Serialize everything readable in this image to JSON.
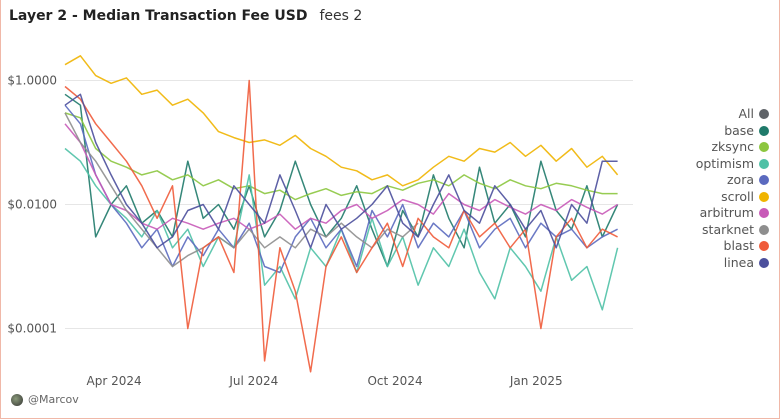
{
  "header": {
    "title": "Layer 2 - Median Transaction Fee USD",
    "subtitle": "fees 2"
  },
  "author": "@Marcov",
  "chart_data": {
    "type": "line",
    "title": "Layer 2 - Median Transaction Fee USD",
    "xlabel": "",
    "ylabel": "",
    "yscale": "log",
    "ylim": [
      4.5e-05,
      4.5
    ],
    "x_start": "2024-02-29",
    "x_step_days": 10,
    "xlim": [
      "2024-02-29",
      "2025-03-05"
    ],
    "x_ticks": [
      {
        "date": "2024-04-01",
        "label": "Apr 2024"
      },
      {
        "date": "2024-07-01",
        "label": "Jul 2024"
      },
      {
        "date": "2024-10-01",
        "label": "Oct 2024"
      },
      {
        "date": "2025-01-01",
        "label": "Jan 2025"
      }
    ],
    "y_ticks": [
      {
        "value": 1,
        "label": "$1.0000"
      },
      {
        "value": 0.01,
        "label": "$0.0100"
      },
      {
        "value": 0.0001,
        "label": "$0.0001"
      }
    ],
    "grid": true,
    "legend_position": "right",
    "series": [
      {
        "name": "All",
        "color": "#5f6368",
        "values": []
      },
      {
        "name": "base",
        "color": "#1f7a6a",
        "values": [
          0.6,
          0.4,
          0.003,
          0.01,
          0.02,
          0.005,
          0.008,
          0.003,
          0.05,
          0.006,
          0.01,
          0.004,
          0.02,
          0.003,
          0.008,
          0.05,
          0.01,
          0.003,
          0.006,
          0.02,
          0.004,
          0.001,
          0.008,
          0.003,
          0.03,
          0.006,
          0.002,
          0.04,
          0.005,
          0.01,
          0.003,
          0.05,
          0.008,
          0.004,
          0.02,
          0.003,
          0.01
        ]
      },
      {
        "name": "zksync",
        "color": "#8cc63f",
        "values": [
          0.3,
          0.25,
          0.08,
          0.05,
          0.04,
          0.03,
          0.035,
          0.025,
          0.03,
          0.02,
          0.025,
          0.018,
          0.02,
          0.015,
          0.017,
          0.012,
          0.015,
          0.018,
          0.014,
          0.016,
          0.015,
          0.02,
          0.017,
          0.022,
          0.025,
          0.02,
          0.03,
          0.022,
          0.018,
          0.025,
          0.02,
          0.018,
          0.022,
          0.02,
          0.017,
          0.015,
          0.015
        ]
      },
      {
        "name": "optimism",
        "color": "#4fc1a6",
        "values": [
          0.08,
          0.05,
          0.02,
          0.01,
          0.006,
          0.003,
          0.008,
          0.002,
          0.004,
          0.001,
          0.003,
          0.002,
          0.03,
          0.0005,
          0.001,
          0.0003,
          0.002,
          0.001,
          0.004,
          0.0008,
          0.006,
          0.001,
          0.003,
          0.0005,
          0.002,
          0.001,
          0.004,
          0.0008,
          0.0003,
          0.002,
          0.001,
          0.0004,
          0.003,
          0.0006,
          0.001,
          0.0002,
          0.002
        ]
      },
      {
        "name": "zora",
        "color": "#5b6abf",
        "values": [
          0.4,
          0.2,
          0.03,
          0.01,
          0.005,
          0.002,
          0.004,
          0.001,
          0.003,
          0.0015,
          0.004,
          0.002,
          0.005,
          0.001,
          0.0008,
          0.003,
          0.006,
          0.002,
          0.004,
          0.001,
          0.008,
          0.003,
          0.01,
          0.002,
          0.005,
          0.003,
          0.008,
          0.002,
          0.004,
          0.006,
          0.002,
          0.005,
          0.003,
          0.004,
          0.002,
          0.003,
          0.004
        ]
      },
      {
        "name": "scroll",
        "color": "#f0b400",
        "values": [
          1.8,
          2.5,
          1.2,
          0.9,
          1.1,
          0.6,
          0.7,
          0.4,
          0.5,
          0.3,
          0.15,
          0.12,
          0.1,
          0.11,
          0.09,
          0.13,
          0.08,
          0.06,
          0.04,
          0.035,
          0.025,
          0.03,
          0.02,
          0.025,
          0.04,
          0.06,
          0.05,
          0.08,
          0.07,
          0.1,
          0.06,
          0.09,
          0.05,
          0.08,
          0.04,
          0.06,
          0.03
        ]
      },
      {
        "name": "arbitrum",
        "color": "#c85ab8",
        "values": [
          0.2,
          0.1,
          0.03,
          0.01,
          0.008,
          0.005,
          0.004,
          0.006,
          0.005,
          0.004,
          0.005,
          0.006,
          0.004,
          0.005,
          0.007,
          0.004,
          0.006,
          0.005,
          0.008,
          0.01,
          0.006,
          0.008,
          0.012,
          0.01,
          0.007,
          0.015,
          0.01,
          0.008,
          0.012,
          0.009,
          0.007,
          0.01,
          0.008,
          0.012,
          0.009,
          0.007,
          0.01
        ]
      },
      {
        "name": "starknet",
        "color": "#8e8e8e",
        "values": [
          0.3,
          0.1,
          0.05,
          0.02,
          0.008,
          0.004,
          0.002,
          0.001,
          0.0015,
          0.002,
          0.003,
          0.002,
          0.004,
          0.002,
          0.003,
          0.002,
          0.004,
          0.003,
          0.005,
          0.003,
          0.002,
          0.004,
          0.003,
          0.005
        ]
      },
      {
        "name": "blast",
        "color": "#ef5b3a",
        "values": [
          0.8,
          0.5,
          0.2,
          0.1,
          0.05,
          0.02,
          0.006,
          0.02,
          0.0001,
          0.002,
          0.003,
          0.0008,
          1.0,
          3e-05,
          0.002,
          0.0004,
          2e-05,
          0.001,
          0.003,
          0.0008,
          0.002,
          0.005,
          0.001,
          0.006,
          0.003,
          0.002,
          0.008,
          0.003,
          0.005,
          0.002,
          0.004,
          0.0001,
          0.003,
          0.006,
          0.002,
          0.004,
          0.003
        ]
      },
      {
        "name": "linea",
        "color": "#4b4f9c",
        "values": [
          0.4,
          0.6,
          0.1,
          0.03,
          0.01,
          0.005,
          0.002,
          0.003,
          0.008,
          0.01,
          0.004,
          0.02,
          0.01,
          0.005,
          0.03,
          0.008,
          0.002,
          0.01,
          0.004,
          0.006,
          0.01,
          0.02,
          0.005,
          0.003,
          0.01,
          0.03,
          0.008,
          0.005,
          0.02,
          0.01,
          0.004,
          0.008,
          0.002,
          0.01,
          0.005,
          0.05,
          0.05
        ]
      }
    ]
  }
}
